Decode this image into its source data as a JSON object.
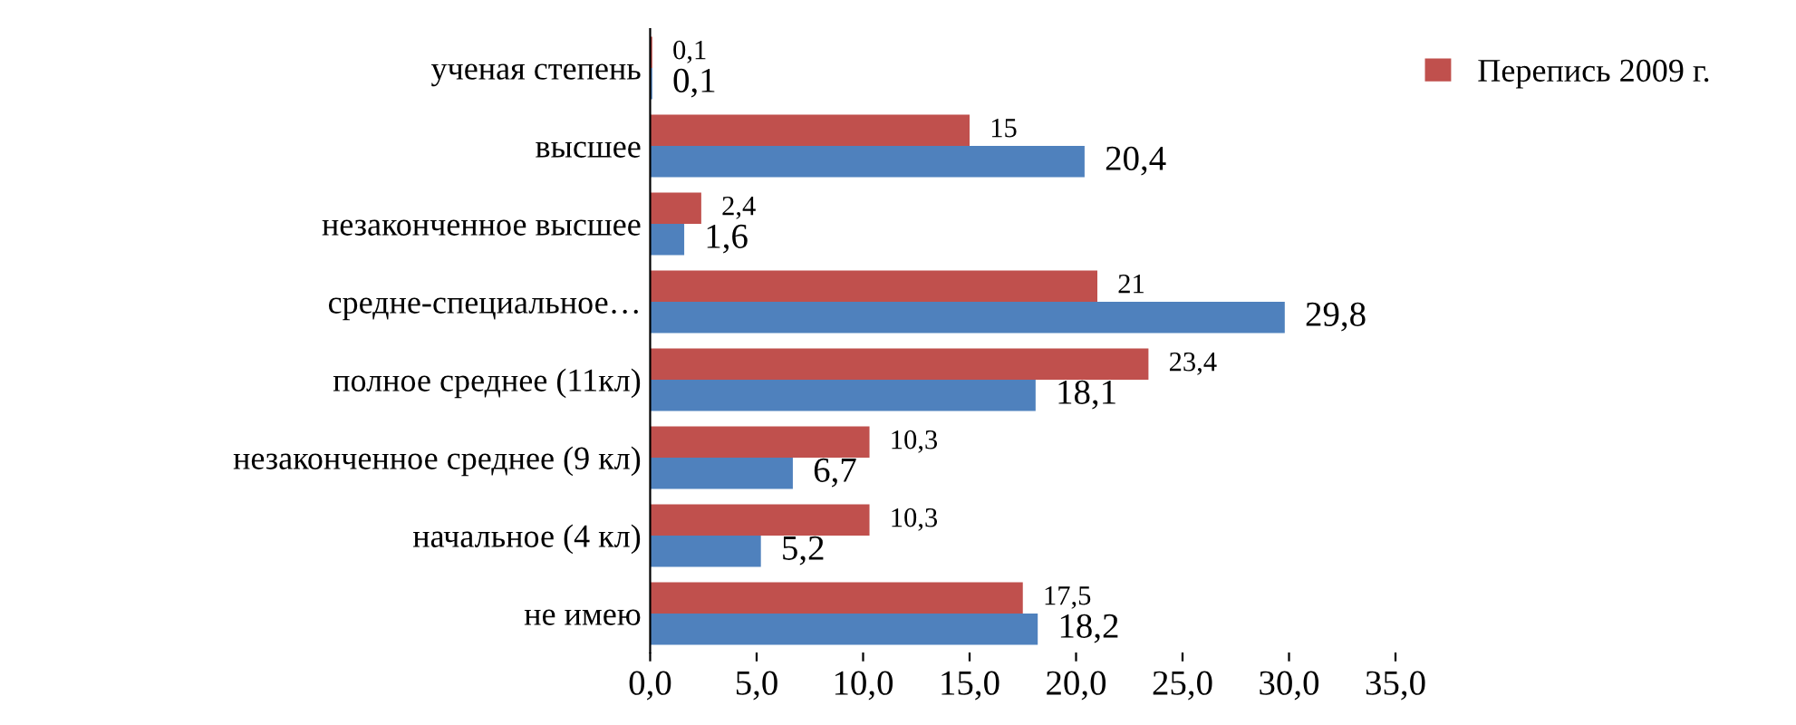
{
  "chart_data": {
    "type": "bar",
    "orientation": "horizontal",
    "categories": [
      "ученая степень",
      "высшее",
      "незаконченное высшее",
      "средне-специальное…",
      "полное среднее (11кл)",
      "незаконченное среднее (9 кл)",
      "начальное (4 кл)",
      "не имею"
    ],
    "series": [
      {
        "name": "Перепись 2009 г.",
        "color": "#c0504d",
        "values": [
          0.1,
          15,
          2.4,
          21,
          23.4,
          10.3,
          10.3,
          17.5
        ],
        "value_labels": [
          "0,1",
          "15",
          "2,4",
          "21",
          "23,4",
          "10,3",
          "10,3",
          "17,5"
        ]
      },
      {
        "color": "#4f81bd",
        "values": [
          0.1,
          20.4,
          1.6,
          29.8,
          18.1,
          6.7,
          5.2,
          18.2
        ],
        "value_labels": [
          "0,1",
          "20,4",
          "1,6",
          "29,8",
          "18,1",
          "6,7",
          "5,2",
          "18,2"
        ]
      }
    ],
    "xlim": [
      0,
      35
    ],
    "xticks": [
      {
        "value": 0,
        "label": "0,0"
      },
      {
        "value": 5,
        "label": "5,0"
      },
      {
        "value": 10,
        "label": "10,0"
      },
      {
        "value": 15,
        "label": "15,0"
      },
      {
        "value": 20,
        "label": "20,0"
      },
      {
        "value": 25,
        "label": "25,0"
      },
      {
        "value": 30,
        "label": "30,0"
      },
      {
        "value": 35,
        "label": "35,0"
      }
    ],
    "grid": false,
    "legend": "top right"
  }
}
